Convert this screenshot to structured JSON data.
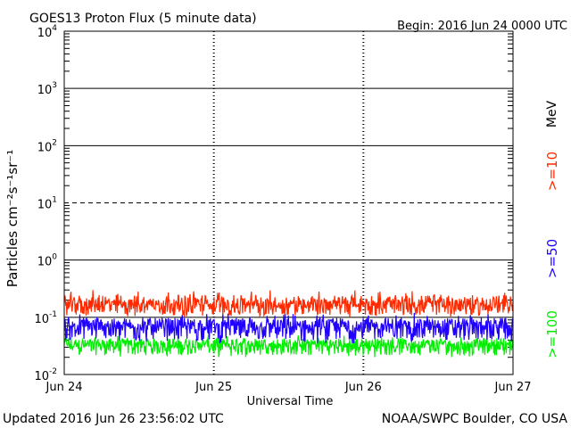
{
  "header": {
    "title": "GOES13 Proton Flux (5 minute data)",
    "begin": "Begin: 2016 Jun 24 0000 UTC"
  },
  "footer": {
    "updated": "Updated 2016 Jun 26 23:56:02 UTC",
    "source": "NOAA/SWPC Boulder, CO USA"
  },
  "chart_data": {
    "type": "line",
    "title": "GOES13 Proton Flux (5 minute data)",
    "xlabel": "Universal Time",
    "ylabel": "Particles cm⁻²s⁻¹sr⁻¹",
    "y_scale": "log",
    "ylim": [
      0.01,
      10000
    ],
    "y_ticks": [
      {
        "base": "10",
        "exp": "4"
      },
      {
        "base": "10",
        "exp": "3"
      },
      {
        "base": "10",
        "exp": "2"
      },
      {
        "base": "10",
        "exp": "1"
      },
      {
        "base": "10",
        "exp": "0"
      },
      {
        "base": "10",
        "exp": "-1"
      },
      {
        "base": "10",
        "exp": "-2"
      }
    ],
    "x_ticks": [
      "Jun 24",
      "Jun 25",
      "Jun 26",
      "Jun 27"
    ],
    "xlim": [
      "2016-06-24T00:00Z",
      "2016-06-27T00:00Z"
    ],
    "unit_label": "MeV",
    "series": [
      {
        "name": ">=10",
        "color": "#ff2a00",
        "typical": 0.15,
        "range": [
          0.1,
          0.3
        ]
      },
      {
        "name": ">=50",
        "color": "#2000ff",
        "typical": 0.06,
        "range": [
          0.035,
          0.12
        ]
      },
      {
        "name": ">=100",
        "color": "#00ee00",
        "typical": 0.03,
        "range": [
          0.02,
          0.05
        ]
      }
    ],
    "grid_lines": [
      {
        "value": 1000,
        "style": "solid"
      },
      {
        "value": 100,
        "style": "solid"
      },
      {
        "value": 10,
        "style": "dashed"
      },
      {
        "value": 1,
        "style": "solid"
      },
      {
        "value": 0.1,
        "style": "solid"
      }
    ]
  }
}
